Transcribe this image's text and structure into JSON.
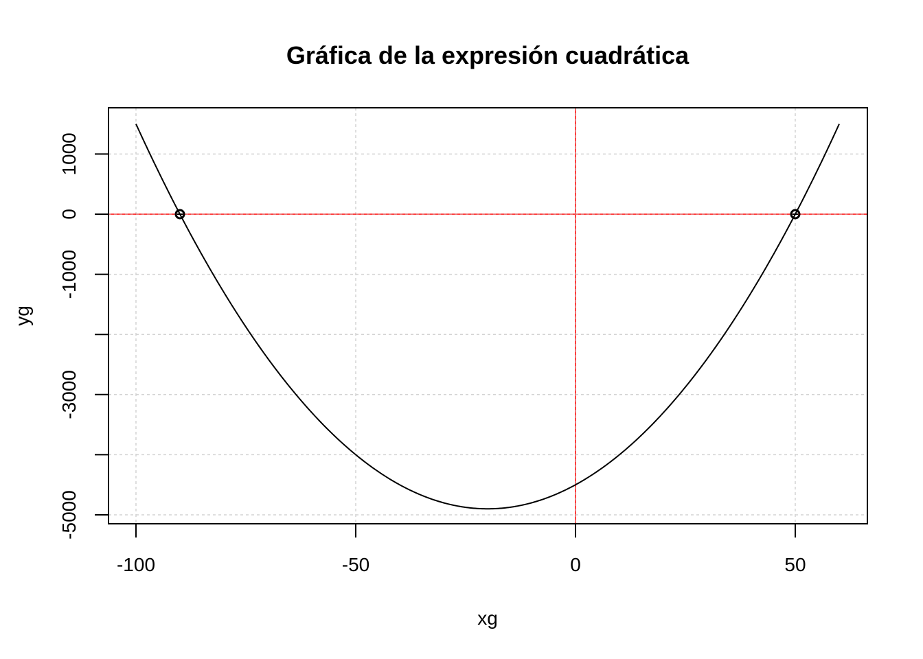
{
  "chart_data": {
    "type": "line",
    "title": "Gráfica de la expresión cuadrática",
    "xlabel": "xg",
    "ylabel": "yg",
    "xlim": [
      -100,
      60
    ],
    "ylim": [
      -5000,
      1470
    ],
    "x_ticks": [
      -100,
      -50,
      0,
      50
    ],
    "x_tick_labels": [
      "-100",
      "-50",
      "0",
      "50"
    ],
    "y_ticks": [
      -5000,
      -4000,
      -3000,
      -2000,
      -1000,
      0,
      1000
    ],
    "y_tick_labels": [
      "-5000",
      "",
      "-3000",
      "",
      "-1000",
      "0",
      "1000"
    ],
    "grid": true,
    "series": [
      {
        "x": [
          -100,
          -90,
          -80,
          -70,
          -60,
          -50,
          -40,
          -30,
          -20,
          -10,
          0,
          10,
          20,
          30,
          40,
          50,
          60
        ],
        "y": [
          1500,
          0,
          -1300,
          -2400,
          -3300,
          -4000,
          -4500,
          -4800,
          -4900,
          -4800,
          -4500,
          -4000,
          -3300,
          -2400,
          -1300,
          0,
          1500
        ],
        "color": "#000000"
      }
    ],
    "points": [
      {
        "x": -90,
        "y": 0
      },
      {
        "x": 50,
        "y": 0
      }
    ],
    "reference_lines": [
      {
        "orientation": "horizontal",
        "value": 0,
        "color": "#ff0000"
      },
      {
        "orientation": "vertical",
        "value": 0,
        "color": "#ff0000"
      }
    ],
    "colors": {
      "curve": "#000000",
      "reference": "#ff0000",
      "grid": "#d3d3d3"
    }
  }
}
